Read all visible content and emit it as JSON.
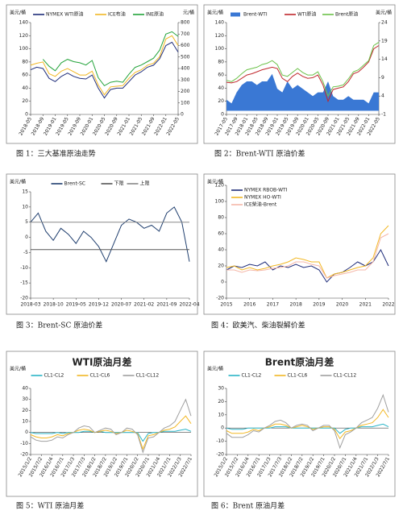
{
  "chart_data": [
    {
      "type": "line",
      "caption": "图 1：三大基准原油走势",
      "ylabel": "美元/桶",
      "y2label": "元/桶",
      "legend": "top",
      "categories": [
        "2018-05",
        null,
        "2018-09",
        null,
        "2019-01",
        null,
        "2019-05",
        null,
        "2019-09",
        null,
        "2020-01",
        null,
        "2020-05",
        null,
        "2020-09",
        null,
        "2021-01",
        null,
        "2021-05",
        null,
        "2021-09",
        null,
        "2022-01",
        null,
        "2022-05"
      ],
      "ylim": [
        0,
        140
      ],
      "yticks": [
        0,
        20,
        40,
        60,
        80,
        100,
        120,
        140
      ],
      "y2lim": [
        0,
        800
      ],
      "y2ticks": [
        0,
        100,
        200,
        300,
        400,
        500,
        600,
        700,
        800
      ],
      "series": [
        {
          "name": "NYMEX WTI原油",
          "color": "#1f2d7a",
          "values": [
            68,
            72,
            70,
            55,
            50,
            58,
            63,
            58,
            55,
            54,
            60,
            40,
            25,
            38,
            40,
            40,
            50,
            60,
            65,
            72,
            75,
            85,
            105,
            110,
            95
          ]
        },
        {
          "name": "ICE布油",
          "color": "#f2b825",
          "values": [
            75,
            78,
            80,
            62,
            58,
            66,
            70,
            65,
            60,
            60,
            66,
            45,
            30,
            42,
            43,
            44,
            55,
            64,
            68,
            75,
            78,
            88,
            115,
            120,
            105
          ]
        },
        {
          "name": "INE原油",
          "color": "#23a33a",
          "axis": "y2",
          "values": [
            null,
            null,
            480,
            420,
            380,
            450,
            480,
            460,
            450,
            430,
            470,
            320,
            250,
            280,
            290,
            280,
            350,
            410,
            430,
            460,
            490,
            560,
            700,
            720,
            680
          ]
        }
      ]
    },
    {
      "type": "line",
      "caption": "图 2：Brent-WTI 原油价差",
      "ylabel": "美元/桶",
      "y2label": "美元/桶",
      "legend": "top",
      "categories": [
        "2017-05",
        null,
        "2017-09",
        null,
        "2018-01",
        null,
        "2018-05",
        null,
        "2018-09",
        null,
        "2019-01",
        null,
        "2019-05",
        null,
        "2019-09",
        null,
        "2020-01",
        null,
        "2020-05",
        null,
        "2020-09",
        null,
        "2021-01",
        null,
        "2021-05",
        null,
        "2021-09",
        null,
        "2022-01",
        null,
        "2022-05"
      ],
      "ylim": [
        0,
        140
      ],
      "yticks": [
        0,
        20,
        40,
        60,
        80,
        100,
        120,
        140
      ],
      "y2lim": [
        -1,
        24
      ],
      "y2ticks": [
        -1,
        4,
        9,
        14,
        19,
        24
      ],
      "series": [
        {
          "name": "Brent-WTI",
          "color": "#3a78d4",
          "axis": "y2",
          "fill": true,
          "values": [
            3,
            2,
            5,
            7,
            8,
            8,
            7,
            8,
            8,
            10,
            6,
            5,
            8,
            6,
            7,
            6,
            5,
            4,
            5,
            5,
            8,
            4,
            3,
            3,
            4,
            3,
            3,
            3,
            2,
            5,
            5
          ]
        },
        {
          "name": "WTI原油",
          "color": "#c0282d",
          "values": [
            49,
            48,
            50,
            55,
            60,
            62,
            65,
            68,
            70,
            72,
            70,
            55,
            50,
            58,
            63,
            58,
            55,
            56,
            60,
            45,
            20,
            38,
            40,
            42,
            50,
            62,
            65,
            72,
            80,
            100,
            105
          ]
        },
        {
          "name": "Brent原油",
          "color": "#6cc24a",
          "values": [
            52,
            50,
            55,
            62,
            68,
            70,
            72,
            76,
            78,
            82,
            76,
            60,
            58,
            64,
            70,
            64,
            60,
            60,
            65,
            50,
            28,
            42,
            43,
            45,
            54,
            65,
            68,
            75,
            82,
            105,
            110
          ]
        }
      ]
    },
    {
      "type": "line",
      "caption": "图 3：Brent-SC 原油价差",
      "ylabel": "美元/桶",
      "legend": "top",
      "categories": [
        "2018-03",
        null,
        null,
        "2018-10",
        null,
        null,
        "2019-05",
        null,
        null,
        "2019-12",
        null,
        null,
        "2020-07",
        null,
        null,
        "2021-02",
        null,
        null,
        "2021-09",
        null,
        null,
        "2022-04"
      ],
      "ylim": [
        -20,
        15
      ],
      "yticks": [
        -20,
        -15,
        -10,
        -5,
        0,
        5,
        10,
        15
      ],
      "series": [
        {
          "name": "Brent-SC",
          "color": "#1f3e6e",
          "values": [
            5,
            8,
            2,
            -1,
            3,
            1,
            -2,
            2,
            0,
            -3,
            -8,
            -2,
            4,
            6,
            5,
            3,
            4,
            2,
            8,
            10,
            5,
            -8
          ]
        },
        {
          "name": "下限",
          "color": "#555555",
          "values": [
            -4,
            -4,
            -4,
            -4,
            -4,
            -4,
            -4,
            -4,
            -4,
            -4,
            -4,
            -4,
            -4,
            -4,
            -4,
            -4,
            -4,
            -4,
            -4,
            -4,
            -4,
            -4
          ]
        },
        {
          "name": "上限",
          "color": "#888888",
          "values": [
            5,
            5,
            5,
            5,
            5,
            5,
            5,
            5,
            5,
            5,
            5,
            5,
            5,
            5,
            5,
            5,
            5,
            5,
            5,
            5,
            5,
            5
          ]
        }
      ]
    },
    {
      "type": "line",
      "caption": "图 4：欧美汽、柴油裂解价差",
      "ylabel": "美元/桶",
      "legend": "top-left",
      "categories": [
        "2015",
        null,
        null,
        "2016",
        null,
        null,
        "2017",
        null,
        null,
        "2018",
        null,
        null,
        "2019",
        null,
        null,
        "2020",
        null,
        null,
        "2021",
        null,
        null,
        "2022"
      ],
      "ylim": [
        -20,
        120
      ],
      "yticks": [
        -20,
        0,
        20,
        40,
        60,
        80,
        100,
        120
      ],
      "series": [
        {
          "name": "NYMEX RBOB-WTI",
          "color": "#1f2d7a",
          "values": [
            15,
            20,
            18,
            22,
            20,
            25,
            15,
            20,
            18,
            22,
            18,
            20,
            15,
            0,
            10,
            12,
            18,
            25,
            20,
            25,
            40,
            20
          ]
        },
        {
          "name": "NYMEX HO-WTI",
          "color": "#f2b825",
          "values": [
            18,
            20,
            15,
            18,
            15,
            17,
            20,
            22,
            25,
            30,
            28,
            25,
            25,
            5,
            10,
            12,
            15,
            18,
            20,
            30,
            60,
            70
          ]
        },
        {
          "name": "ICE柴油-Brent",
          "color": "#f5b7a8",
          "values": [
            15,
            15,
            12,
            15,
            14,
            15,
            17,
            18,
            20,
            25,
            25,
            22,
            20,
            5,
            8,
            10,
            12,
            15,
            15,
            25,
            55,
            60
          ]
        }
      ]
    },
    {
      "type": "line",
      "title": "WTI原油月差",
      "caption": "图 5：WTI 原油月差",
      "ylabel": "美元/桶",
      "legend": "top",
      "categories": [
        "2015/1/2",
        null,
        "2015/7/2",
        null,
        "2016/1/4",
        null,
        "2016/7/1",
        null,
        "2017/1/3",
        null,
        "2017/7/3",
        null,
        "2018/1/2",
        null,
        "2018/7/2",
        null,
        "2019/1/2",
        null,
        "2019/7/1",
        null,
        "2020/1/2",
        null,
        "2020/7/1",
        null,
        "2021/1/4",
        null,
        "2021/7/1",
        null,
        "2022/1/3",
        null,
        "2022/7/1"
      ],
      "ylim": [
        -20,
        40
      ],
      "yticks": [
        -20,
        -10,
        0,
        10,
        20,
        30,
        40
      ],
      "series": [
        {
          "name": "CL1-CL2",
          "color": "#2bb5c7",
          "values": [
            0,
            -1,
            -1,
            -1,
            -1,
            0,
            -1,
            0,
            0,
            0,
            1,
            1,
            0,
            1,
            0,
            0,
            0,
            0,
            0,
            0,
            0,
            -8,
            -1,
            0,
            0,
            1,
            1,
            1,
            2,
            3,
            1
          ]
        },
        {
          "name": "CL1-CL6",
          "color": "#f2b825",
          "values": [
            -2,
            -4,
            -5,
            -5,
            -4,
            -2,
            -3,
            -1,
            0,
            2,
            3,
            2,
            0,
            1,
            2,
            1,
            -1,
            0,
            2,
            1,
            -1,
            -15,
            -3,
            -2,
            0,
            2,
            3,
            5,
            10,
            15,
            8
          ]
        },
        {
          "name": "CL1-CL12",
          "color": "#a0a0a0",
          "values": [
            -4,
            -7,
            -8,
            -8,
            -7,
            -4,
            -5,
            -2,
            0,
            4,
            6,
            5,
            0,
            2,
            4,
            3,
            -2,
            0,
            4,
            3,
            -2,
            -18,
            -5,
            -4,
            0,
            4,
            6,
            10,
            20,
            30,
            15
          ]
        }
      ]
    },
    {
      "type": "line",
      "title": "Brent原油月差",
      "caption": "图 6：Brent 原油月差",
      "ylabel": "美元/桶",
      "legend": "top",
      "categories": [
        "2015/1/2",
        null,
        "2015/7/2",
        null,
        "2016/1/4",
        null,
        "2016/7/1",
        null,
        "2017/1/3",
        null,
        "2017/7/3",
        null,
        "2018/1/2",
        null,
        "2018/7/2",
        null,
        "2019/1/2",
        null,
        "2019/7/1",
        null,
        "2020/1/2",
        null,
        "2020/7/1",
        null,
        "2021/1/4",
        null,
        "2021/7/1",
        null,
        "2022/1/3",
        null,
        "2022/7/1"
      ],
      "ylim": [
        -20,
        30
      ],
      "yticks": [
        -20,
        -10,
        0,
        10,
        20,
        30
      ],
      "series": [
        {
          "name": "CL1-CL2",
          "color": "#2bb5c7",
          "values": [
            0,
            -1,
            -1,
            -1,
            0,
            0,
            0,
            0,
            0,
            1,
            1,
            1,
            0,
            0,
            0,
            0,
            0,
            0,
            0,
            0,
            0,
            -4,
            -1,
            0,
            0,
            1,
            1,
            1,
            2,
            3,
            1
          ]
        },
        {
          "name": "CL1-CL6",
          "color": "#f2b825",
          "values": [
            -2,
            -4,
            -4,
            -4,
            -3,
            -1,
            -2,
            0,
            1,
            3,
            3,
            2,
            0,
            1,
            2,
            1,
            -1,
            0,
            1,
            1,
            -1,
            -8,
            -3,
            -2,
            0,
            2,
            3,
            4,
            8,
            14,
            8
          ]
        },
        {
          "name": "CL1-CL12",
          "color": "#a0a0a0",
          "values": [
            -4,
            -7,
            -7,
            -7,
            -5,
            -2,
            -3,
            0,
            2,
            5,
            6,
            4,
            0,
            2,
            3,
            2,
            -2,
            0,
            2,
            2,
            -2,
            -15,
            -5,
            -3,
            0,
            4,
            6,
            8,
            15,
            25,
            12
          ]
        }
      ]
    }
  ]
}
